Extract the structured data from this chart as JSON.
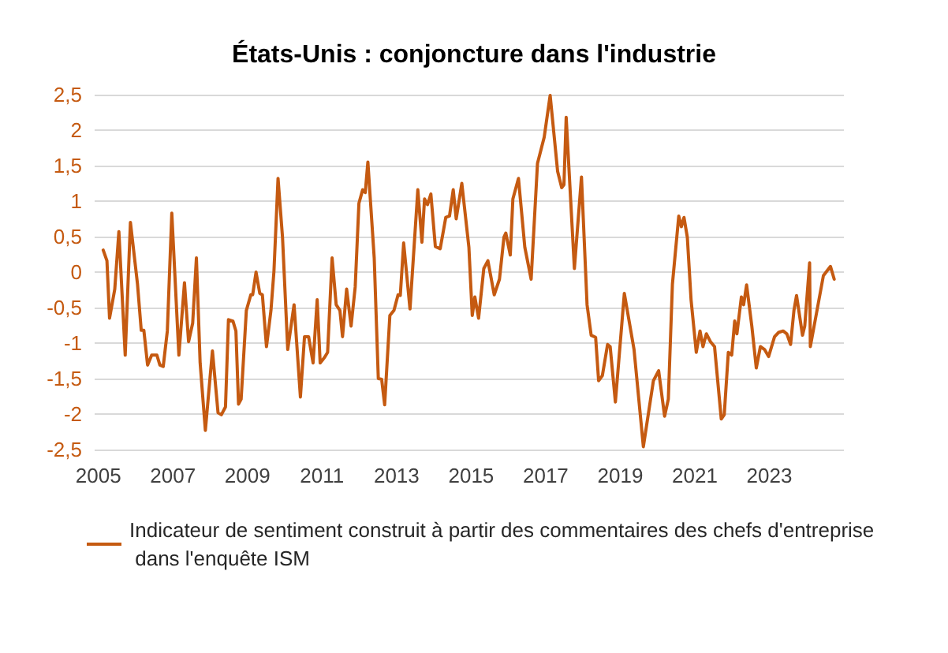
{
  "chart_data": {
    "type": "line",
    "title": "États-Unis : conjoncture dans l'industrie",
    "series": [
      {
        "name": "Indicateur de sentiment construit à partir des commentaires des chefs d'entreprise dans l'enquête ISM",
        "color": "#c55a11",
        "x": [
          2005.13,
          2005.23,
          2005.3,
          2005.44,
          2005.55,
          2005.72,
          2005.86,
          2006.05,
          2006.15,
          2006.22,
          2006.32,
          2006.43,
          2006.57,
          2006.65,
          2006.74,
          2006.85,
          2006.97,
          2007.16,
          2007.31,
          2007.42,
          2007.53,
          2007.63,
          2007.73,
          2007.87,
          2008.06,
          2008.21,
          2008.3,
          2008.41,
          2008.49,
          2008.61,
          2008.69,
          2008.76,
          2008.83,
          2008.97,
          2009.09,
          2009.14,
          2009.23,
          2009.33,
          2009.4,
          2009.51,
          2009.63,
          2009.71,
          2009.82,
          2009.94,
          2010.08,
          2010.25,
          2010.42,
          2010.53,
          2010.64,
          2010.76,
          2010.87,
          2010.95,
          2011.07,
          2011.15,
          2011.27,
          2011.38,
          2011.48,
          2011.55,
          2011.66,
          2011.78,
          2011.89,
          2011.99,
          2012.09,
          2012.16,
          2012.23,
          2012.4,
          2012.51,
          2012.6,
          2012.68,
          2012.82,
          2012.93,
          2013.04,
          2013.1,
          2013.19,
          2013.36,
          2013.57,
          2013.68,
          2013.75,
          2013.83,
          2013.92,
          2014.04,
          2014.17,
          2014.32,
          2014.42,
          2014.52,
          2014.6,
          2014.75,
          2014.94,
          2015.03,
          2015.1,
          2015.2,
          2015.34,
          2015.45,
          2015.62,
          2015.76,
          2015.88,
          2015.93,
          2016.05,
          2016.12,
          2016.27,
          2016.44,
          2016.61,
          2016.78,
          2016.96,
          2017.12,
          2017.32,
          2017.43,
          2017.49,
          2017.55,
          2017.77,
          2017.96,
          2018.11,
          2018.22,
          2018.34,
          2018.42,
          2018.52,
          2018.66,
          2018.73,
          2018.87,
          2019.11,
          2019.37,
          2019.62,
          2019.89,
          2020.03,
          2020.19,
          2020.29,
          2020.4,
          2020.57,
          2020.64,
          2020.71,
          2020.8,
          2020.9,
          2021.04,
          2021.14,
          2021.22,
          2021.31,
          2021.42,
          2021.53,
          2021.71,
          2021.79,
          2021.9,
          2021.99,
          2022.07,
          2022.13,
          2022.25,
          2022.31,
          2022.39,
          2022.53,
          2022.65,
          2022.76,
          2022.87,
          2022.98,
          2023.14,
          2023.25,
          2023.37,
          2023.47,
          2023.57,
          2023.66,
          2023.73,
          2023.89,
          2023.95,
          2024.08,
          2024.1,
          2024.45,
          2024.64,
          2024.74
        ],
        "values": [
          0.31,
          0.16,
          -0.65,
          -0.24,
          0.57,
          -1.17,
          0.7,
          -0.17,
          -0.82,
          -0.82,
          -1.31,
          -1.17,
          -1.17,
          -1.31,
          -1.33,
          -0.83,
          0.83,
          -1.17,
          -0.15,
          -0.98,
          -0.72,
          0.2,
          -1.28,
          -2.23,
          -1.11,
          -1.98,
          -2.01,
          -1.9,
          -0.67,
          -0.69,
          -0.83,
          -1.86,
          -1.79,
          -0.54,
          -0.32,
          -0.32,
          0,
          -0.3,
          -0.32,
          -1.05,
          -0.54,
          0.01,
          1.32,
          0.49,
          -1.09,
          -0.46,
          -1.76,
          -0.91,
          -0.91,
          -1.28,
          -0.39,
          -1.28,
          -1.2,
          -1.13,
          0.2,
          -0.46,
          -0.54,
          -0.91,
          -0.24,
          -0.76,
          -0.21,
          0.97,
          1.16,
          1.12,
          1.55,
          0.2,
          -1.5,
          -1.51,
          -1.87,
          -0.61,
          -0.54,
          -0.32,
          -0.33,
          0.41,
          -0.52,
          1.16,
          0.42,
          1.03,
          0.95,
          1.1,
          0.36,
          0.33,
          0.77,
          0.79,
          1.16,
          0.75,
          1.25,
          0.35,
          -0.61,
          -0.35,
          -0.65,
          0.05,
          0.16,
          -0.32,
          -0.1,
          0.49,
          0.55,
          0.24,
          1.03,
          1.32,
          0.35,
          -0.1,
          1.53,
          1.9,
          2.49,
          1.42,
          1.19,
          1.23,
          2.18,
          0.05,
          1.34,
          -0.46,
          -0.89,
          -0.92,
          -1.53,
          -1.46,
          -1.02,
          -1.05,
          -1.83,
          -0.3,
          -1.09,
          -2.46,
          -1.53,
          -1.39,
          -2.03,
          -1.79,
          -0.17,
          0.79,
          0.64,
          0.77,
          0.49,
          -0.39,
          -1.13,
          -0.83,
          -1.05,
          -0.87,
          -0.98,
          -1.05,
          -2.07,
          -2.01,
          -1.13,
          -1.17,
          -0.69,
          -0.87,
          -0.35,
          -0.46,
          -0.18,
          -0.76,
          -1.35,
          -1.05,
          -1.09,
          -1.19,
          -0.91,
          -0.85,
          -0.83,
          -0.87,
          -1.02,
          -0.54,
          -0.33,
          -0.89,
          -0.76,
          0.13,
          -1.05,
          -0.05,
          0.08,
          -0.1
        ]
      }
    ],
    "xlim": [
      2004.9,
      2025
    ],
    "xticks": [
      2005,
      2007,
      2009,
      2011,
      2013,
      2015,
      2017,
      2019,
      2021,
      2023
    ],
    "ylim": [
      -2.5,
      2.5
    ],
    "yticks": [
      {
        "value": -2.5,
        "label": "-2,5"
      },
      -2,
      {
        "value": -1.5,
        "label": "-1,5"
      },
      -1,
      {
        "value": -0.5,
        "label": "-0,5"
      },
      0,
      {
        "value": 0.5,
        "label": "0,5"
      },
      1,
      {
        "value": 1.5,
        "label": "1,5"
      },
      2,
      {
        "value": 2.5,
        "label": "2,5"
      }
    ],
    "grid": "y",
    "legend": "bottom",
    "marker": "none",
    "line_style": "solid"
  }
}
